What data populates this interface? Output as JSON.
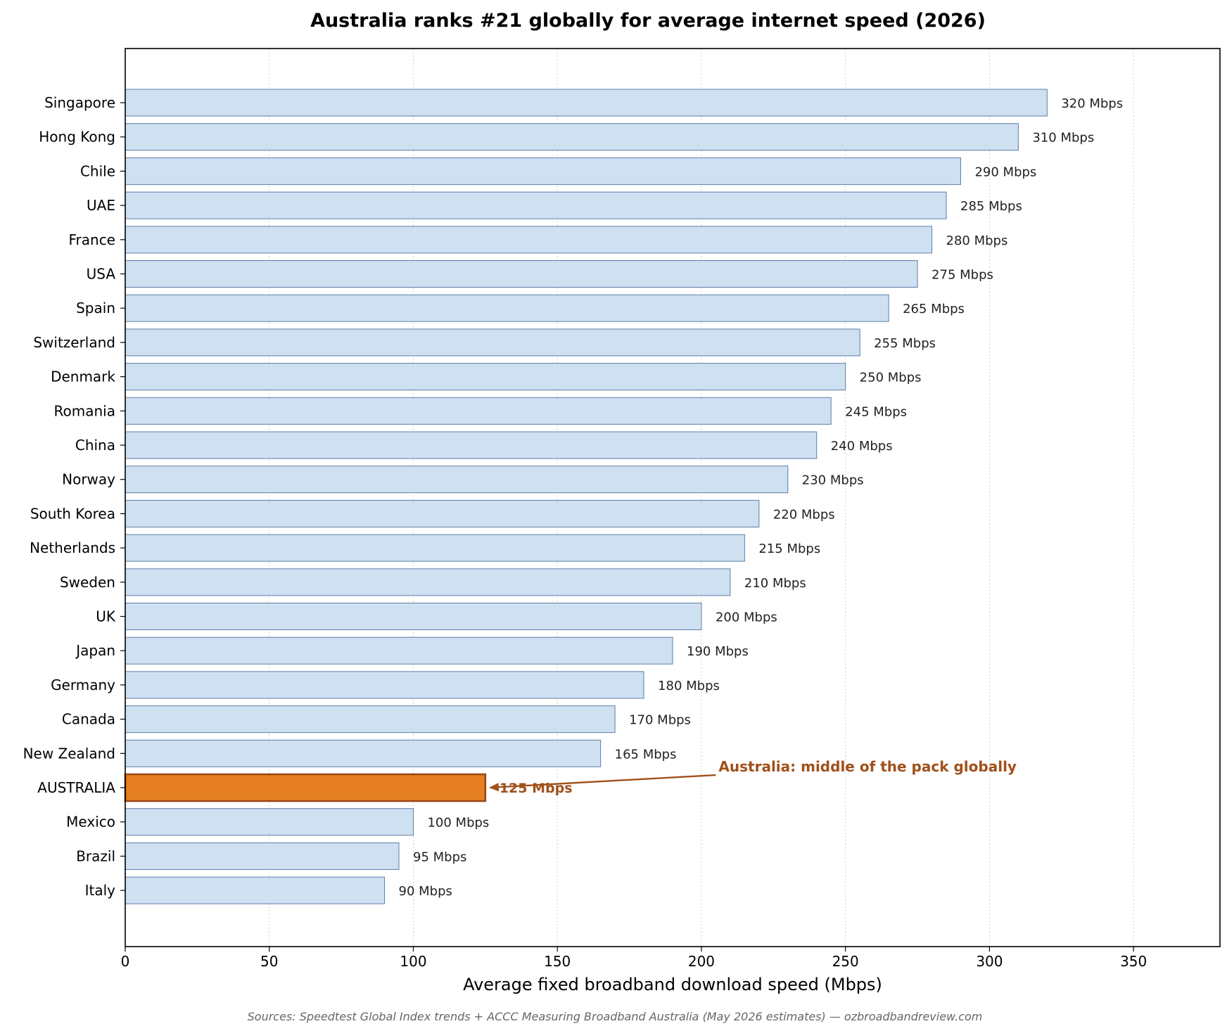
{
  "chart_data": {
    "type": "bar",
    "orientation": "horizontal",
    "title": "Australia ranks #21 globally for average internet speed (2026)",
    "xlabel": "Average fixed broadband download speed (Mbps)",
    "ylabel": "",
    "xlim": [
      0,
      380
    ],
    "xticks": [
      0,
      50,
      100,
      150,
      200,
      250,
      300,
      350
    ],
    "grid": "x, dotted",
    "categories": [
      "Singapore",
      "Hong Kong",
      "Chile",
      "UAE",
      "France",
      "USA",
      "Spain",
      "Switzerland",
      "Denmark",
      "Romania",
      "China",
      "Norway",
      "South Korea",
      "Netherlands",
      "Sweden",
      "UK",
      "Japan",
      "Germany",
      "Canada",
      "New Zealand",
      "AUSTRALIA",
      "Mexico",
      "Brazil",
      "Italy"
    ],
    "values": [
      320,
      310,
      290,
      285,
      280,
      275,
      265,
      255,
      250,
      245,
      240,
      230,
      220,
      215,
      210,
      200,
      190,
      180,
      170,
      165,
      125,
      100,
      95,
      90
    ],
    "value_labels": [
      "320 Mbps",
      "310 Mbps",
      "290 Mbps",
      "285 Mbps",
      "280 Mbps",
      "275 Mbps",
      "265 Mbps",
      "255 Mbps",
      "250 Mbps",
      "245 Mbps",
      "240 Mbps",
      "230 Mbps",
      "220 Mbps",
      "215 Mbps",
      "210 Mbps",
      "200 Mbps",
      "190 Mbps",
      "180 Mbps",
      "170 Mbps",
      "165 Mbps",
      "125 Mbps",
      "100 Mbps",
      "95 Mbps",
      "90 Mbps"
    ],
    "highlight": "AUSTRALIA",
    "annotation": "Australia: middle of the pack globally",
    "source": "Sources: Speedtest Global Index trends + ACCC Measuring Broadband Australia (May 2026 estimates) — ozbroadbandreview.com"
  },
  "colors": {
    "bar_fill": "#cfe0f1",
    "bar_edge": "#5a7fa8",
    "highlight_fill": "#e57f22",
    "highlight_edge": "#9b4a12",
    "annotation": "#a0501a",
    "grid": "#cccccc",
    "source_text": "#666666"
  }
}
